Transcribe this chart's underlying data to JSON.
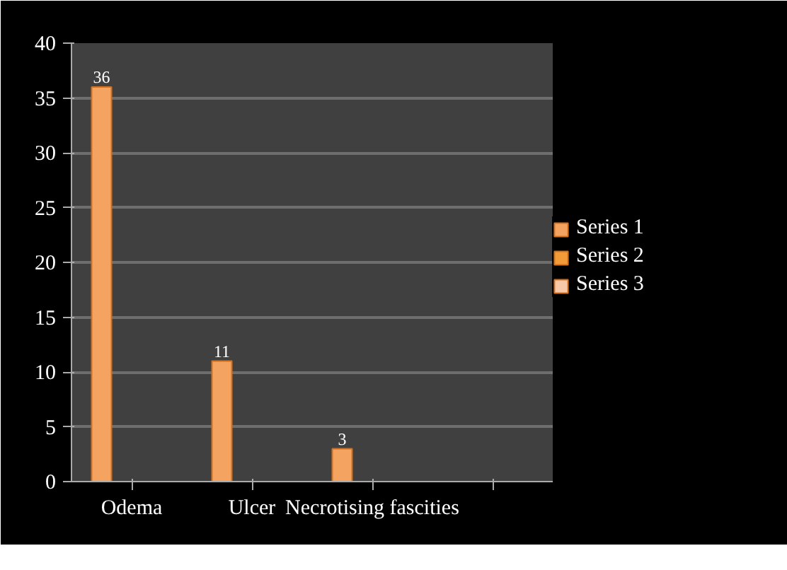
{
  "chart_data": {
    "type": "bar",
    "categories": [
      "Odema",
      "Ulcer",
      "Necrotising fascities",
      null
    ],
    "series": [
      {
        "name": "Series 1",
        "color": "#f4a460",
        "values": [
          36,
          11,
          3,
          null
        ],
        "value_labels": [
          "36",
          "11",
          "3",
          null
        ]
      },
      {
        "name": "Series 2",
        "color": "#f29b38",
        "values": [
          null,
          null,
          null,
          null
        ]
      },
      {
        "name": "Series 3",
        "color": "#f8c9a8",
        "values": [
          null,
          null,
          null,
          null
        ]
      }
    ],
    "ylim": [
      0,
      40
    ],
    "yticks": [
      0,
      5,
      10,
      15,
      20,
      25,
      30,
      35,
      40
    ],
    "grid": "y",
    "legend": "right"
  }
}
